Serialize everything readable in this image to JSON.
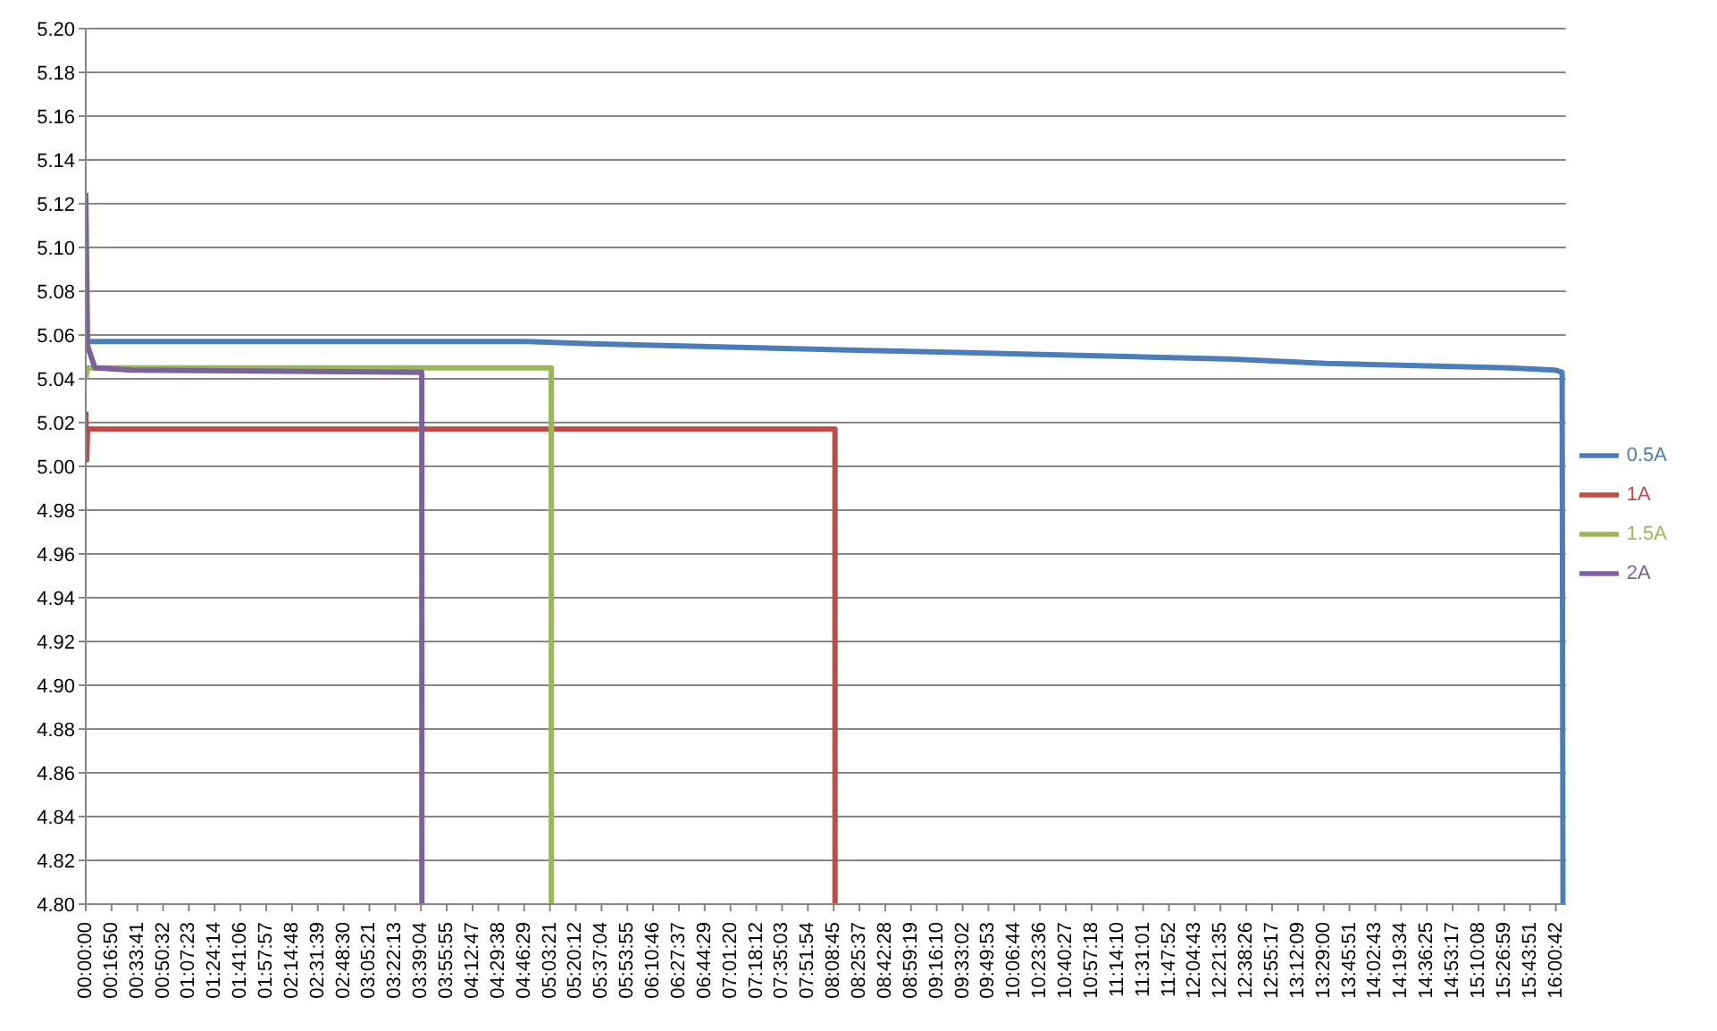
{
  "chart_data": {
    "type": "line",
    "xlim": [
      0,
      16.12
    ],
    "xticks": [
      {
        "value": 0,
        "label": "00:00:00"
      },
      {
        "value": 0.2806,
        "label": "00:16:50"
      },
      {
        "value": 0.5614,
        "label": "00:33:41"
      },
      {
        "value": 0.8422,
        "label": "00:50:32"
      },
      {
        "value": 1.1231,
        "label": "01:07:23"
      },
      {
        "value": 1.4039,
        "label": "01:24:14"
      },
      {
        "value": 1.685,
        "label": "01:41:06"
      },
      {
        "value": 1.9658,
        "label": "01:57:57"
      },
      {
        "value": 2.2467,
        "label": "02:14:48"
      },
      {
        "value": 2.5275,
        "label": "02:31:39"
      },
      {
        "value": 2.8083,
        "label": "02:48:30"
      },
      {
        "value": 3.0892,
        "label": "03:05:21"
      },
      {
        "value": 3.3703,
        "label": "03:22:13"
      },
      {
        "value": 3.6511,
        "label": "03:39:04"
      },
      {
        "value": 3.9319,
        "label": "03:55:55"
      },
      {
        "value": 4.2131,
        "label": "04:12:47"
      },
      {
        "value": 4.4939,
        "label": "04:29:38"
      },
      {
        "value": 4.7747,
        "label": "04:46:29"
      },
      {
        "value": 5.0558,
        "label": "05:03:21"
      },
      {
        "value": 5.3367,
        "label": "05:20:12"
      },
      {
        "value": 5.6178,
        "label": "05:37:04"
      },
      {
        "value": 5.8986,
        "label": "05:53:55"
      },
      {
        "value": 6.1794,
        "label": "06:10:46"
      },
      {
        "value": 6.4603,
        "label": "06:27:37"
      },
      {
        "value": 6.7414,
        "label": "06:44:29"
      },
      {
        "value": 7.0222,
        "label": "07:01:20"
      },
      {
        "value": 7.3033,
        "label": "07:18:12"
      },
      {
        "value": 7.5842,
        "label": "07:35:03"
      },
      {
        "value": 7.865,
        "label": "07:51:54"
      },
      {
        "value": 8.1458,
        "label": "08:08:45"
      },
      {
        "value": 8.4269,
        "label": "08:25:37"
      },
      {
        "value": 8.7078,
        "label": "08:42:28"
      },
      {
        "value": 8.9886,
        "label": "08:59:19"
      },
      {
        "value": 9.2694,
        "label": "09:16:10"
      },
      {
        "value": 9.5506,
        "label": "09:33:02"
      },
      {
        "value": 9.8314,
        "label": "09:49:53"
      },
      {
        "value": 10.1122,
        "label": "10:06:44"
      },
      {
        "value": 10.3933,
        "label": "10:23:36"
      },
      {
        "value": 10.6742,
        "label": "10:40:27"
      },
      {
        "value": 10.955,
        "label": "10:57:18"
      },
      {
        "value": 11.2361,
        "label": "11:14:10"
      },
      {
        "value": 11.5169,
        "label": "11:31:01"
      },
      {
        "value": 11.7978,
        "label": "11:47:52"
      },
      {
        "value": 12.0786,
        "label": "12:04:43"
      },
      {
        "value": 12.3597,
        "label": "12:21:35"
      },
      {
        "value": 12.6406,
        "label": "12:38:26"
      },
      {
        "value": 12.9214,
        "label": "12:55:17"
      },
      {
        "value": 13.2025,
        "label": "13:12:09"
      },
      {
        "value": 13.4833,
        "label": "13:29:00"
      },
      {
        "value": 13.7642,
        "label": "13:45:51"
      },
      {
        "value": 14.0453,
        "label": "14:02:43"
      },
      {
        "value": 14.3261,
        "label": "14:19:34"
      },
      {
        "value": 14.6069,
        "label": "14:36:25"
      },
      {
        "value": 14.8881,
        "label": "14:53:17"
      },
      {
        "value": 15.1689,
        "label": "15:10:08"
      },
      {
        "value": 15.4497,
        "label": "15:26:59"
      },
      {
        "value": 15.7308,
        "label": "15:43:51"
      },
      {
        "value": 16.0117,
        "label": "16:00:42"
      }
    ],
    "ylim": [
      4.8,
      5.2
    ],
    "yticks": [
      {
        "value": 4.8,
        "label": "4.80"
      },
      {
        "value": 4.82,
        "label": "4.82"
      },
      {
        "value": 4.84,
        "label": "4.84"
      },
      {
        "value": 4.86,
        "label": "4.86"
      },
      {
        "value": 4.88,
        "label": "4.88"
      },
      {
        "value": 4.9,
        "label": "4.90"
      },
      {
        "value": 4.92,
        "label": "4.92"
      },
      {
        "value": 4.94,
        "label": "4.94"
      },
      {
        "value": 4.96,
        "label": "4.96"
      },
      {
        "value": 4.98,
        "label": "4.98"
      },
      {
        "value": 5.0,
        "label": "5.00"
      },
      {
        "value": 5.02,
        "label": "5.02"
      },
      {
        "value": 5.04,
        "label": "5.04"
      },
      {
        "value": 5.06,
        "label": "5.06"
      },
      {
        "value": 5.08,
        "label": "5.08"
      },
      {
        "value": 5.1,
        "label": "5.10"
      },
      {
        "value": 5.12,
        "label": "5.12"
      },
      {
        "value": 5.14,
        "label": "5.14"
      },
      {
        "value": 5.16,
        "label": "5.16"
      },
      {
        "value": 5.18,
        "label": "5.18"
      },
      {
        "value": 5.2,
        "label": "5.20"
      }
    ],
    "grid": "y",
    "legend": "right",
    "marker": "none",
    "line_style": "solid",
    "series": [
      {
        "name": "0.5A",
        "color": "#4a7ebb",
        "x": [
          0,
          0.5,
          1,
          2,
          3,
          4,
          4.8,
          5.5,
          6.5,
          7.5,
          8.5,
          9.5,
          10.5,
          11.5,
          12.5,
          13.5,
          14.5,
          15.5,
          16.0,
          16.08,
          16.09
        ],
        "values": [
          5.057,
          5.057,
          5.057,
          5.057,
          5.057,
          5.057,
          5.057,
          5.056,
          5.055,
          5.054,
          5.053,
          5.052,
          5.051,
          5.05,
          5.049,
          5.047,
          5.046,
          5.045,
          5.044,
          5.043,
          4.8
        ]
      },
      {
        "name": "1A",
        "color": "#be4b48",
        "x": [
          0,
          0.01,
          0.02,
          0.03,
          8.16,
          8.161
        ],
        "values": [
          5.025,
          5.003,
          5.017,
          5.017,
          5.017,
          4.8
        ]
      },
      {
        "name": "1.5A",
        "color": "#98b954",
        "x": [
          0,
          0.02,
          5.07,
          5.071
        ],
        "values": [
          5.04,
          5.045,
          5.045,
          4.8
        ]
      },
      {
        "name": "2A",
        "color": "#7d60a0",
        "x": [
          0,
          0.02,
          0.1,
          0.5,
          3.66,
          3.661
        ],
        "values": [
          5.125,
          5.055,
          5.045,
          5.044,
          5.043,
          4.8
        ]
      }
    ]
  }
}
